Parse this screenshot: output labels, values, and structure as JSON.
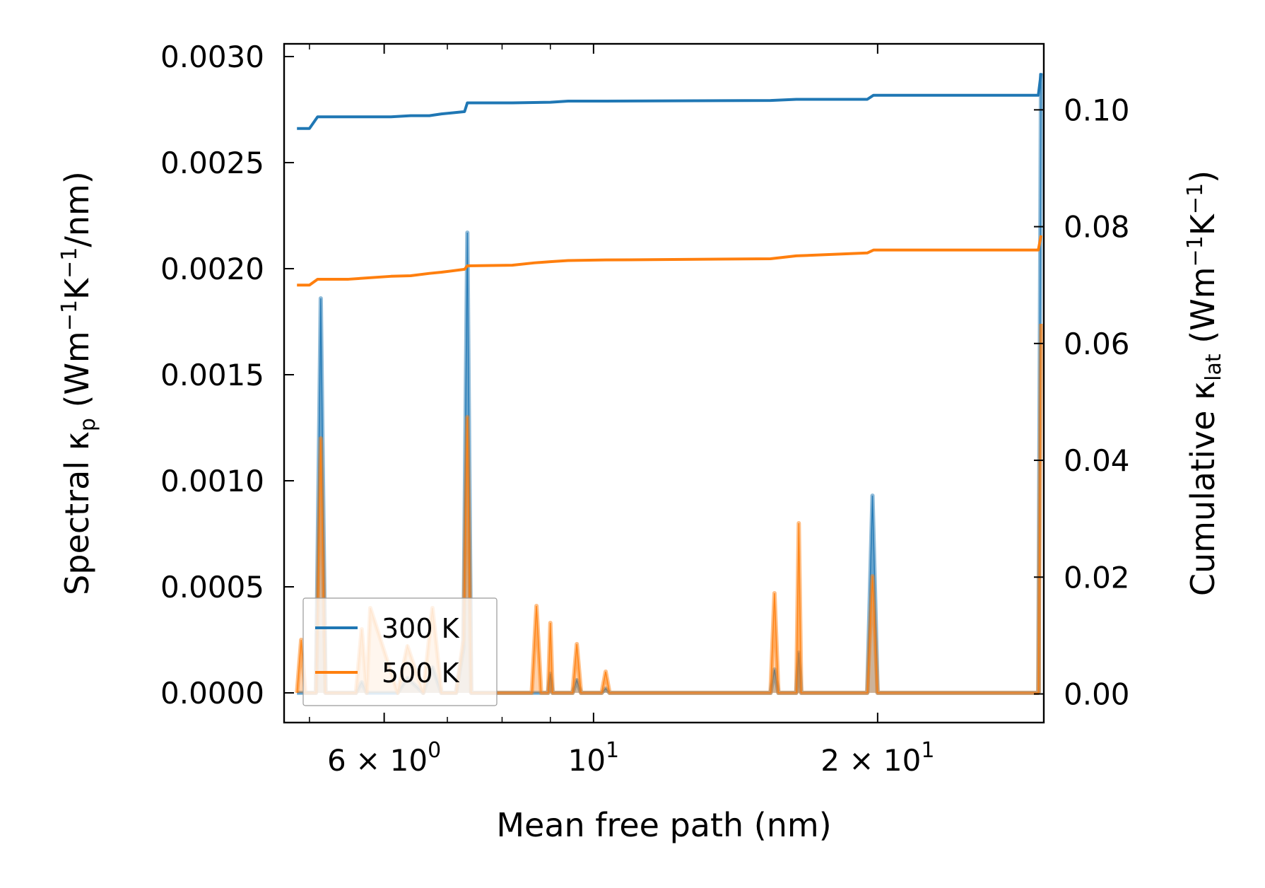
{
  "chart_data": {
    "type": "line",
    "title": "",
    "xlabel": "Mean free path (nm)",
    "ylabel_left": "Spectral κ_p (Wm⁻¹K⁻¹/nm)",
    "ylabel_right": "Cumulative κ_lat (Wm⁻¹K⁻¹)",
    "xscale": "log",
    "xlim": [
      4.7,
      30.0
    ],
    "ylim_left": [
      -0.00014,
      0.00306
    ],
    "ylim_right": [
      -0.0049,
      0.1113
    ],
    "x_ticks": [
      {
        "value": 6,
        "label": "6 × 10",
        "exp": "0"
      },
      {
        "value": 10,
        "label": "10",
        "exp": "1"
      },
      {
        "value": 20,
        "label": "2 × 10",
        "exp": "1"
      }
    ],
    "y_left_ticks": [
      "0.0000",
      "0.0005",
      "0.0010",
      "0.0015",
      "0.0020",
      "0.0025",
      "0.0030"
    ],
    "y_right_ticks": [
      "0.00",
      "0.02",
      "0.04",
      "0.06",
      "0.08",
      "0.10"
    ],
    "legend": {
      "position": "lower-left",
      "entries": [
        "300 K",
        "500 K"
      ]
    },
    "colors": {
      "300 K": "#1f77b4",
      "500 K": "#ff7f0e"
    },
    "spectral": [
      {
        "name": "300 K",
        "axis": "left",
        "x": [
          4.85,
          5.08,
          5.14,
          5.2,
          5.4,
          5.6,
          5.68,
          5.75,
          5.8,
          6.2,
          6.35,
          6.6,
          6.75,
          6.9,
          7.15,
          7.28,
          7.35,
          7.42,
          7.5,
          7.65,
          7.75,
          8.2,
          8.95,
          9.0,
          9.05,
          9.5,
          9.6,
          9.7,
          10.2,
          10.3,
          10.4,
          15.4,
          15.55,
          15.7,
          16.4,
          16.5,
          16.6,
          19.5,
          19.75,
          20.0,
          29.6,
          29.8
        ],
        "y": [
          0.0,
          0.0,
          0.00186,
          0.0,
          0.0,
          0.0,
          5e-05,
          0.0,
          0.0,
          0.0,
          7e-05,
          0.0,
          0.00012,
          0.0,
          0.0,
          0.00021,
          0.00217,
          0.0,
          0.0,
          0.0,
          0.0,
          0.0,
          0.0,
          9e-05,
          0.0,
          0.0,
          6e-05,
          0.0,
          0.0,
          2e-05,
          0.0,
          0.0,
          0.00011,
          0.0,
          0.0,
          0.00019,
          0.0,
          0.0,
          0.00093,
          0.0,
          0.0,
          0.00292
        ]
      },
      {
        "name": "500 K",
        "axis": "left",
        "x": [
          4.85,
          4.9,
          4.95,
          5.08,
          5.14,
          5.2,
          5.4,
          5.6,
          5.68,
          5.75,
          5.8,
          6.2,
          6.35,
          6.6,
          6.75,
          6.9,
          7.15,
          7.28,
          7.35,
          7.42,
          7.5,
          7.65,
          7.75,
          8.2,
          8.6,
          8.7,
          8.8,
          8.95,
          9.0,
          9.05,
          9.5,
          9.6,
          9.7,
          10.2,
          10.3,
          10.4,
          15.4,
          15.55,
          15.7,
          16.4,
          16.5,
          16.6,
          19.5,
          19.75,
          20.0,
          29.6,
          29.8
        ],
        "y": [
          0.0,
          0.00025,
          0.0,
          0.0,
          0.0012,
          0.0,
          0.0,
          0.0,
          0.0003,
          0.0,
          0.0004,
          0.0,
          0.00022,
          0.0,
          0.0004,
          0.0,
          0.0,
          0.00025,
          0.0013,
          0.0,
          0.0,
          0.0,
          0.0,
          0.0,
          0.0,
          0.00041,
          0.0,
          0.0,
          0.00033,
          0.0,
          0.0,
          0.00023,
          0.0,
          0.0,
          0.0001,
          0.0,
          0.0,
          0.00047,
          0.0,
          0.0,
          0.0008,
          0.0,
          0.0,
          0.00055,
          0.0,
          0.0,
          0.00174
        ]
      }
    ],
    "cumulative": [
      {
        "name": "300 K",
        "axis": "right",
        "x": [
          4.85,
          5.0,
          5.1,
          5.5,
          6.1,
          6.4,
          6.7,
          6.9,
          7.3,
          7.35,
          8.2,
          9.0,
          9.4,
          10.3,
          15.4,
          16.4,
          19.5,
          19.8,
          29.6,
          29.8
        ],
        "y": [
          0.0968,
          0.0968,
          0.0988,
          0.0988,
          0.0988,
          0.099,
          0.099,
          0.0993,
          0.0997,
          0.1012,
          0.1012,
          0.1013,
          0.1015,
          0.1015,
          0.1016,
          0.1018,
          0.1018,
          0.1025,
          0.1025,
          0.1063
        ]
      },
      {
        "name": "500 K",
        "axis": "right",
        "x": [
          4.85,
          5.0,
          5.1,
          5.5,
          6.1,
          6.4,
          6.7,
          6.9,
          7.3,
          7.35,
          8.2,
          8.65,
          9.0,
          9.4,
          10.3,
          15.4,
          16.4,
          19.5,
          19.8,
          29.6,
          29.8
        ],
        "y": [
          0.07,
          0.07,
          0.071,
          0.071,
          0.0715,
          0.0716,
          0.072,
          0.0722,
          0.0727,
          0.0733,
          0.0734,
          0.0738,
          0.074,
          0.0742,
          0.0743,
          0.0745,
          0.075,
          0.0755,
          0.076,
          0.076,
          0.0785
        ]
      }
    ]
  }
}
